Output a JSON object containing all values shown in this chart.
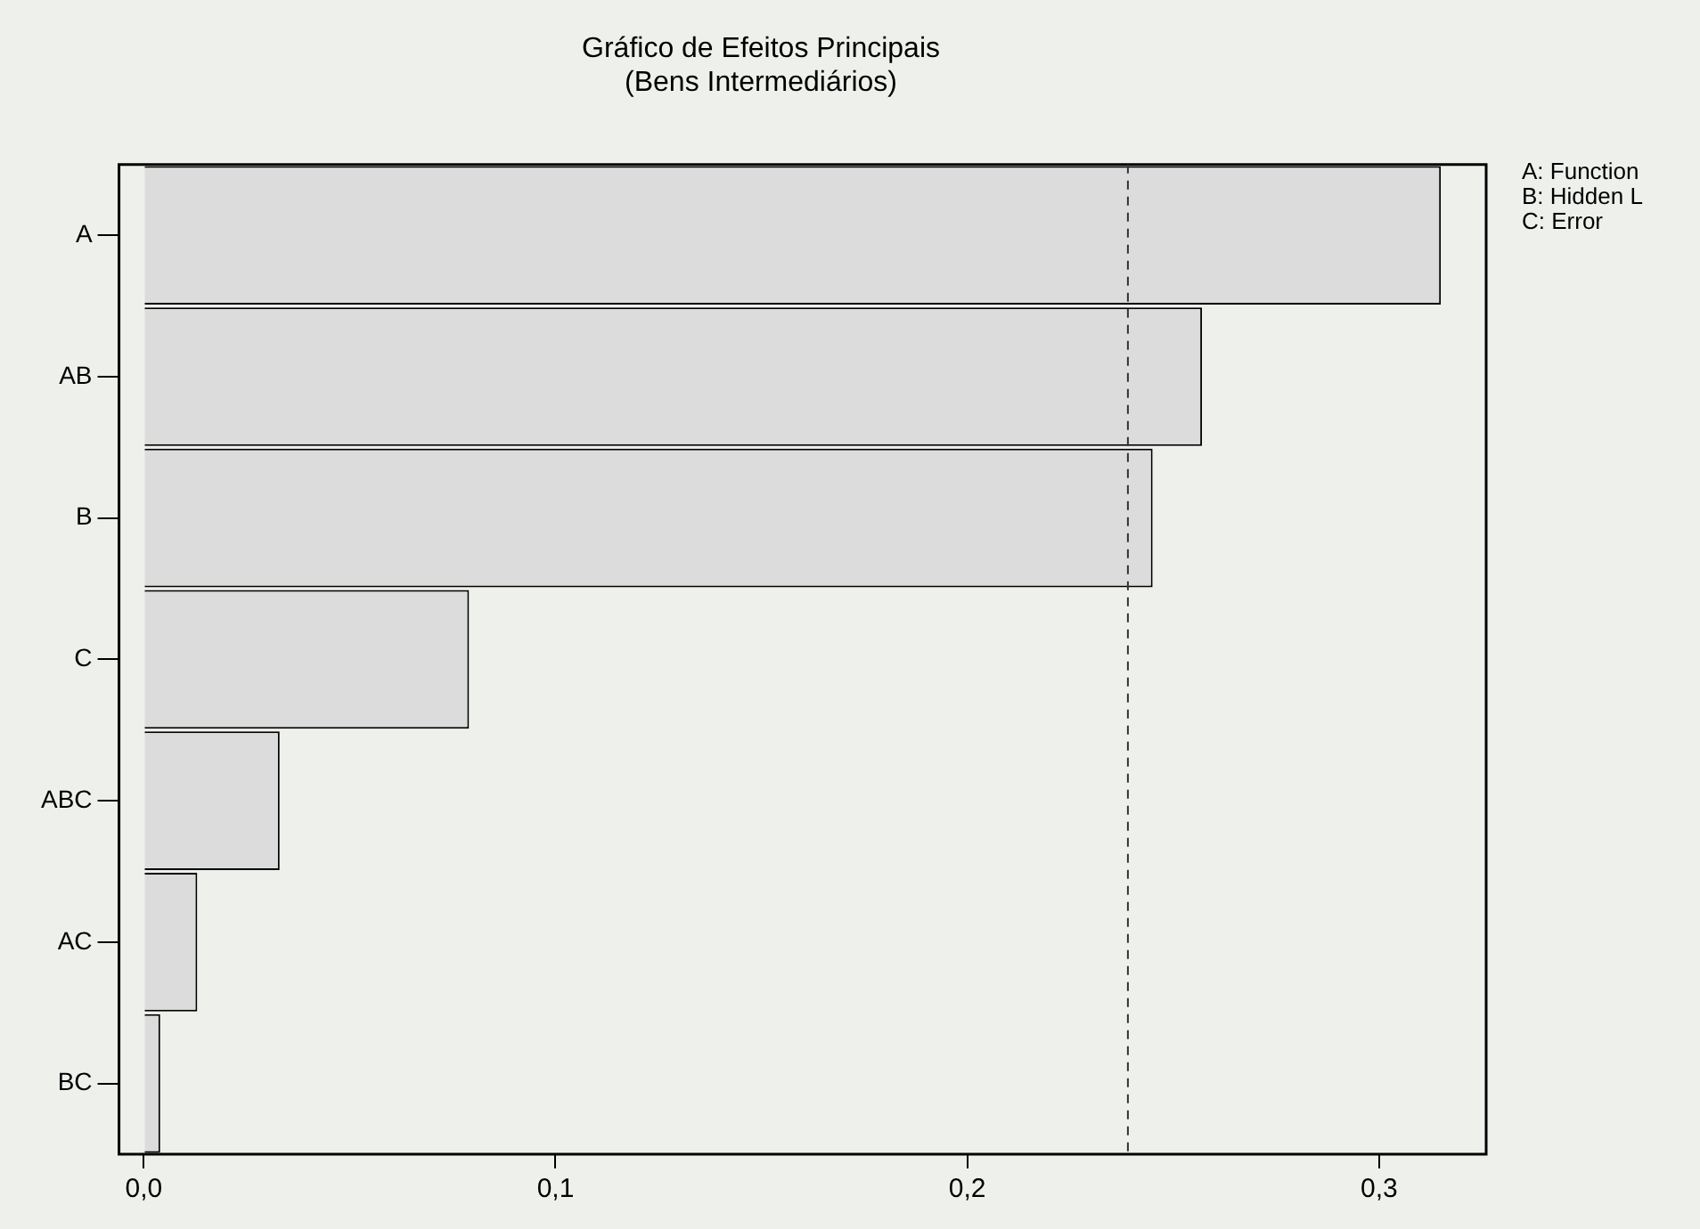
{
  "chart_data": {
    "type": "bar",
    "orientation": "horizontal",
    "title": "Gráfico de Efeitos Principais",
    "subtitle": "(Bens Intermediários)",
    "categories": [
      "A",
      "AB",
      "B",
      "C",
      "ABC",
      "AC",
      "BC"
    ],
    "values": [
      0.315,
      0.257,
      0.245,
      0.079,
      0.033,
      0.013,
      0.004
    ],
    "color": "#dcdcdc",
    "xlim": [
      -0.006,
      0.326
    ],
    "xticks": [
      {
        "value": 0,
        "label": "0,0"
      },
      {
        "value": 0.1,
        "label": "0,1"
      },
      {
        "value": 0.2,
        "label": "0,2"
      },
      {
        "value": 0.3,
        "label": "0,3"
      }
    ],
    "ref_lines": [
      {
        "axis": "x",
        "value": 0.239,
        "color": "#333333",
        "line_style": "dashed"
      }
    ],
    "annotations": [
      "A: Function",
      "B: Hidden L",
      "C: Error"
    ]
  }
}
